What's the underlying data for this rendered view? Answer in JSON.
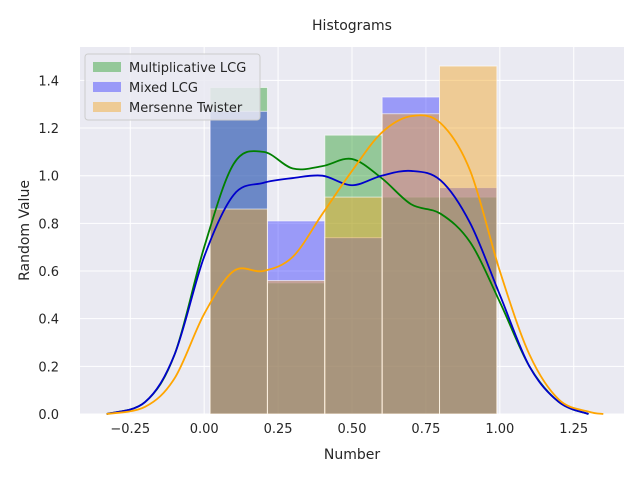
{
  "chart_data": {
    "type": "bar",
    "title": "Histograms",
    "xlabel": "Number",
    "ylabel": "Random Value",
    "xlim": [
      -0.42,
      1.42
    ],
    "ylim": [
      0,
      1.54
    ],
    "xticks": [
      -0.25,
      0.0,
      0.25,
      0.5,
      0.75,
      1.0,
      1.25
    ],
    "xtick_labels": [
      "−0.25",
      "0.00",
      "0.25",
      "0.50",
      "0.75",
      "1.00",
      "1.25"
    ],
    "yticks": [
      0.0,
      0.2,
      0.4,
      0.6,
      0.8,
      1.0,
      1.2,
      1.4
    ],
    "ytick_labels": [
      "0.0",
      "0.2",
      "0.4",
      "0.6",
      "0.8",
      "1.0",
      "1.2",
      "1.4"
    ],
    "grid": true,
    "legend_position": "top-left",
    "series": [
      {
        "name": "Multiplicative LCG",
        "color": "#2ca02c",
        "kde_color": "#008000",
        "bins": [
          0.02,
          0.214,
          0.408,
          0.602,
          0.796,
          0.99
        ],
        "heights": [
          1.37,
          0.55,
          1.17,
          0.91,
          0.91
        ],
        "kde_x": [
          -0.33,
          -0.2,
          -0.1,
          0.0,
          0.1,
          0.2,
          0.3,
          0.4,
          0.5,
          0.6,
          0.7,
          0.8,
          0.9,
          1.0,
          1.1,
          1.2,
          1.3
        ],
        "kde_y": [
          0.0,
          0.05,
          0.25,
          0.7,
          1.05,
          1.1,
          1.03,
          1.04,
          1.07,
          0.99,
          0.88,
          0.84,
          0.72,
          0.47,
          0.2,
          0.05,
          0.0
        ]
      },
      {
        "name": "Mixed LCG",
        "color": "#3a3aff",
        "kde_color": "#0000cc",
        "bins": [
          0.02,
          0.214,
          0.408,
          0.602,
          0.796,
          0.99
        ],
        "heights": [
          1.27,
          0.81,
          0.74,
          1.33,
          0.95
        ],
        "kde_x": [
          -0.33,
          -0.2,
          -0.1,
          0.0,
          0.1,
          0.2,
          0.3,
          0.4,
          0.5,
          0.6,
          0.7,
          0.8,
          0.9,
          1.0,
          1.1,
          1.2,
          1.3
        ],
        "kde_y": [
          0.0,
          0.05,
          0.25,
          0.66,
          0.92,
          0.97,
          0.99,
          1.0,
          0.96,
          1.0,
          1.02,
          0.98,
          0.8,
          0.5,
          0.2,
          0.05,
          0.0
        ]
      },
      {
        "name": "Mersenne Twister",
        "color": "#f5a623",
        "kde_color": "#ffa500",
        "bins": [
          0.02,
          0.214,
          0.408,
          0.602,
          0.796,
          0.99
        ],
        "heights": [
          0.86,
          0.56,
          0.91,
          1.26,
          1.46
        ],
        "kde_x": [
          -0.33,
          -0.2,
          -0.1,
          0.0,
          0.1,
          0.2,
          0.3,
          0.4,
          0.5,
          0.6,
          0.7,
          0.8,
          0.9,
          1.0,
          1.1,
          1.2,
          1.3,
          1.35
        ],
        "kde_y": [
          0.0,
          0.03,
          0.15,
          0.42,
          0.6,
          0.6,
          0.66,
          0.84,
          1.02,
          1.18,
          1.25,
          1.22,
          1.02,
          0.6,
          0.25,
          0.06,
          0.01,
          0.0
        ]
      }
    ]
  }
}
